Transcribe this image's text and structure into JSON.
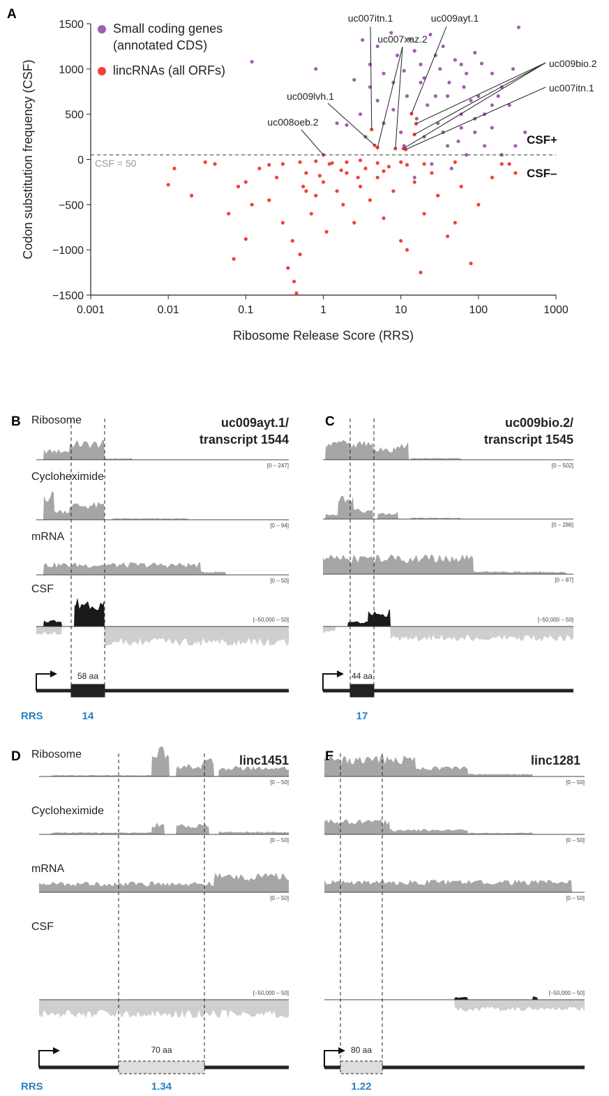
{
  "chart_data": {
    "type": "scatter",
    "panel_label": "A",
    "x_label": "Ribosome Release Score (RRS)",
    "y_label": "Codon substitution frequency (CSF)",
    "log_x": true,
    "xlim": [
      0.001,
      1000
    ],
    "xticks": [
      0.001,
      0.01,
      0.1,
      1,
      10,
      100,
      1000
    ],
    "ylim": [
      -1500,
      1500
    ],
    "yticks": [
      1500,
      1000,
      500,
      0,
      {
        "value": -500,
        "label": "−500"
      },
      {
        "value": -1000,
        "label": "−1000"
      },
      {
        "value": -1500,
        "label": "−1500"
      }
    ],
    "legend": "top-left",
    "reference_line": {
      "value": 50,
      "label": "CSF = 50"
    },
    "region_labels": [
      "CSF+",
      "CSF–"
    ],
    "series": [
      {
        "name": "Small coding genes (annotated CDS)",
        "color": "#a35db0",
        "x": [
          0.12,
          0.8,
          2.5,
          3.2,
          4,
          5,
          6,
          7.5,
          9,
          11,
          13,
          15,
          18,
          20,
          24,
          28,
          32,
          35,
          42,
          50,
          60,
          70,
          90,
          110,
          150,
          200,
          330,
          280,
          250,
          180,
          120,
          80,
          60,
          40,
          30,
          22,
          16,
          12,
          10,
          8,
          6,
          5,
          4,
          3.5,
          20,
          35,
          55,
          90,
          150,
          300,
          70,
          45,
          25,
          15,
          120,
          200,
          400,
          8,
          3,
          18,
          28,
          65,
          100,
          2,
          1.5,
          60,
          40,
          11,
          150,
          90
        ],
        "values": [
          1080,
          1000,
          880,
          1320,
          1050,
          1250,
          950,
          1400,
          1150,
          980,
          1330,
          1200,
          1050,
          900,
          1380,
          1150,
          1000,
          1250,
          850,
          1100,
          1050,
          950,
          1180,
          1060,
          950,
          800,
          1460,
          1000,
          600,
          700,
          500,
          650,
          500,
          700,
          400,
          600,
          450,
          700,
          300,
          550,
          400,
          650,
          800,
          250,
          250,
          300,
          200,
          300,
          350,
          150,
          50,
          -100,
          -50,
          -200,
          150,
          50,
          300,
          850,
          500,
          850,
          700,
          800,
          700,
          380,
          400,
          350,
          150,
          150,
          600,
          450
        ]
      },
      {
        "name": "lincRNAs (all ORFs)",
        "color": "#f0413a",
        "x": [
          0.01,
          0.012,
          0.02,
          0.03,
          0.04,
          0.06,
          0.07,
          0.08,
          0.1,
          0.1,
          0.12,
          0.15,
          0.2,
          0.25,
          0.3,
          0.35,
          0.4,
          0.42,
          0.45,
          0.5,
          0.55,
          0.6,
          0.7,
          0.8,
          1,
          1.1,
          1.2,
          1.5,
          1.8,
          2,
          2.5,
          3,
          3.5,
          4,
          5,
          6,
          7,
          8,
          10,
          12,
          15,
          18,
          20,
          25,
          30,
          40,
          50,
          60,
          80,
          100,
          150,
          200,
          250,
          300,
          0.5,
          0.8,
          1.3,
          2,
          3,
          0.3,
          0.2,
          5,
          10,
          20,
          50,
          4.2,
          5,
          8.5,
          13.7,
          15.7,
          14.9,
          10.8,
          4.6,
          1,
          12,
          1.7,
          0.9,
          6,
          2.8,
          0.6,
          11.5
        ],
        "values": [
          -280,
          -100,
          -400,
          -30,
          -50,
          -600,
          -1100,
          -300,
          -250,
          -880,
          -500,
          -100,
          -450,
          -200,
          -700,
          -1200,
          -900,
          -1350,
          -1480,
          -1050,
          -300,
          -150,
          -600,
          -400,
          -250,
          -800,
          -50,
          -350,
          -500,
          -150,
          -700,
          -300,
          -100,
          -450,
          -200,
          -650,
          -80,
          -350,
          -900,
          -1000,
          -250,
          -1250,
          -600,
          -150,
          -400,
          -850,
          -700,
          -300,
          -1150,
          -500,
          -200,
          -50,
          -50,
          -150,
          -30,
          -20,
          -40,
          -30,
          -10,
          -50,
          -60,
          -40,
          -30,
          -50,
          -30,
          330,
          130,
          120,
          505,
          395,
          275,
          120,
          155,
          50,
          -60,
          -120,
          -180,
          -130,
          -200,
          -350,
          110
        ]
      }
    ],
    "annotations": [
      {
        "text": "uc007itn.1",
        "points": [
          [
            4.2,
            330
          ]
        ]
      },
      {
        "text": "uc007xaz.2",
        "points": [
          [
            5,
            130
          ],
          [
            8.5,
            120
          ]
        ]
      },
      {
        "text": "uc009ayt.1",
        "points": [
          [
            13.7,
            505
          ]
        ]
      },
      {
        "text": "uc009bio.2",
        "points": [
          [
            15.7,
            395
          ],
          [
            14.9,
            275
          ],
          [
            10.8,
            120
          ]
        ]
      },
      {
        "text": "uc007itn.1",
        "points": [
          [
            11.5,
            110
          ]
        ]
      },
      {
        "text": "uc009lvh.1",
        "points": [
          [
            4.6,
            155
          ]
        ]
      },
      {
        "text": "uc008oeb.2",
        "points": [
          [
            1,
            50
          ]
        ]
      }
    ]
  },
  "panels": [
    {
      "letter": "B",
      "title_lines": [
        "uc009ayt.1/",
        "transcript 1544"
      ],
      "tracks": [
        {
          "label": "Ribosome",
          "range": "[0 – 247]"
        },
        {
          "label": "Cycloheximide",
          "range": "[0 – 94]"
        },
        {
          "label": "mRNA",
          "range": "[0 – 50]"
        },
        {
          "label": "CSF",
          "range": "[–50,000 – 50]"
        }
      ],
      "orf": "58 aa",
      "rrs_label": "RRS",
      "rrs": 14
    },
    {
      "letter": "C",
      "title_lines": [
        "uc009bio.2/",
        "transcript 1545"
      ],
      "tracks": [
        {
          "range": "[0 – 502]"
        },
        {
          "range": "[0 – 286]"
        },
        {
          "range": "[0 – 87]"
        },
        {
          "range": "[–50,000 – 50]"
        }
      ],
      "orf": "44 aa",
      "rrs": 17
    },
    {
      "letter": "D",
      "title_lines": [
        "linc1451"
      ],
      "tracks": [
        {
          "label": "Ribosome",
          "range": "[0 – 50]"
        },
        {
          "label": "Cycloheximide",
          "range": "[0 – 50]"
        },
        {
          "label": "mRNA",
          "range": "[0 – 50]"
        },
        {
          "label": "CSF",
          "range": "[–50,000 – 50]"
        }
      ],
      "orf": "70 aa",
      "rrs_label": "RRS",
      "rrs": 1.34
    },
    {
      "letter": "E",
      "title_lines": [
        "linc1281"
      ],
      "tracks": [
        {
          "range": "[0 – 50]"
        },
        {
          "range": "[0 – 50]"
        },
        {
          "range": "[0 – 50]"
        },
        {
          "range": "[–50,000 – 50]"
        }
      ],
      "orf": "80 aa",
      "rrs": 1.22
    }
  ]
}
